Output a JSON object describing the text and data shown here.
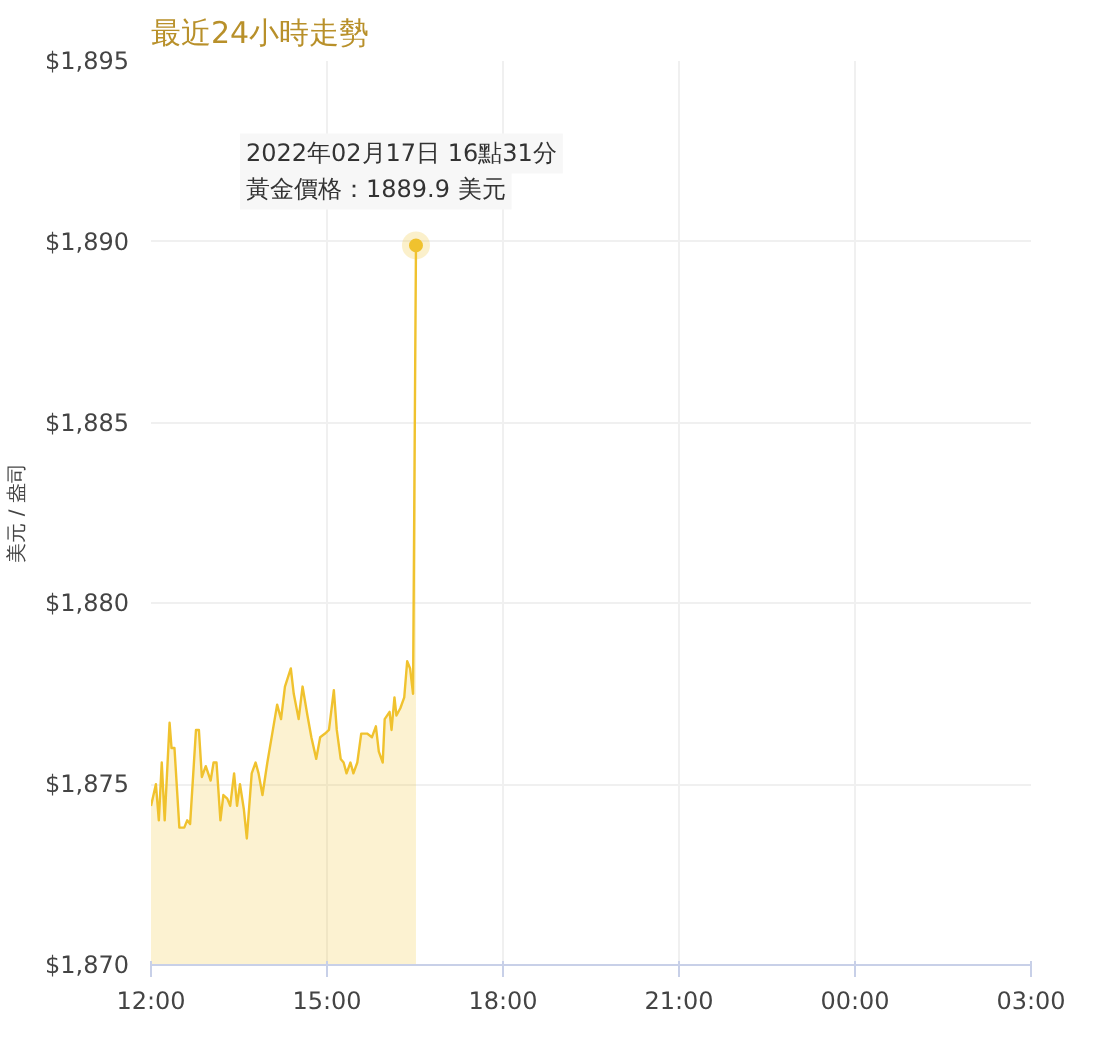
{
  "chart_data": {
    "type": "area",
    "title": "最近24小時走勢",
    "ylabel": "美元 / 盎司",
    "x": [
      "2022-02-17T12:00",
      "2022-02-17T12:05",
      "2022-02-17T12:08",
      "2022-02-17T12:11",
      "2022-02-17T12:14",
      "2022-02-17T12:19",
      "2022-02-17T12:21",
      "2022-02-17T12:24",
      "2022-02-17T12:29",
      "2022-02-17T12:34",
      "2022-02-17T12:37",
      "2022-02-17T12:40",
      "2022-02-17T12:46",
      "2022-02-17T12:49",
      "2022-02-17T12:52",
      "2022-02-17T12:56",
      "2022-02-17T13:01",
      "2022-02-17T13:04",
      "2022-02-17T13:07",
      "2022-02-17T13:11",
      "2022-02-17T13:14",
      "2022-02-17T13:18",
      "2022-02-17T13:21",
      "2022-02-17T13:25",
      "2022-02-17T13:28",
      "2022-02-17T13:31",
      "2022-02-17T13:35",
      "2022-02-17T13:38",
      "2022-02-17T13:43",
      "2022-02-17T13:47",
      "2022-02-17T13:50",
      "2022-02-17T13:54",
      "2022-02-17T13:59",
      "2022-02-17T14:04",
      "2022-02-17T14:09",
      "2022-02-17T14:13",
      "2022-02-17T14:17",
      "2022-02-17T14:23",
      "2022-02-17T14:26",
      "2022-02-17T14:31",
      "2022-02-17T14:35",
      "2022-02-17T14:40",
      "2022-02-17T14:44",
      "2022-02-17T14:49",
      "2022-02-17T14:53",
      "2022-02-17T14:58",
      "2022-02-17T15:02",
      "2022-02-17T15:07",
      "2022-02-17T15:10",
      "2022-02-17T15:14",
      "2022-02-17T15:17",
      "2022-02-17T15:20",
      "2022-02-17T15:24",
      "2022-02-17T15:27",
      "2022-02-17T15:31",
      "2022-02-17T15:35",
      "2022-02-17T15:41",
      "2022-02-17T15:46",
      "2022-02-17T15:50",
      "2022-02-17T15:53",
      "2022-02-17T15:57",
      "2022-02-17T15:59",
      "2022-02-17T16:04",
      "2022-02-17T16:06",
      "2022-02-17T16:09",
      "2022-02-17T16:11",
      "2022-02-17T16:15",
      "2022-02-17T16:19",
      "2022-02-17T16:22",
      "2022-02-17T16:25",
      "2022-02-17T16:28",
      "2022-02-17T16:31"
    ],
    "series": [
      {
        "color": "#f0c22e",
        "values": [
          1874.4,
          1875.0,
          1874.0,
          1875.6,
          1874.0,
          1876.7,
          1876.0,
          1876.0,
          1873.8,
          1873.8,
          1874.0,
          1873.9,
          1876.5,
          1876.5,
          1875.2,
          1875.5,
          1875.1,
          1875.6,
          1875.6,
          1874.0,
          1874.7,
          1874.6,
          1874.4,
          1875.3,
          1874.4,
          1875.0,
          1874.3,
          1873.5,
          1875.3,
          1875.6,
          1875.3,
          1874.7,
          1875.6,
          1876.4,
          1877.2,
          1876.8,
          1877.7,
          1878.2,
          1877.5,
          1876.8,
          1877.7,
          1876.9,
          1876.3,
          1875.7,
          1876.3,
          1876.4,
          1876.5,
          1877.6,
          1876.5,
          1875.7,
          1875.6,
          1875.3,
          1875.6,
          1875.3,
          1875.6,
          1876.4,
          1876.4,
          1876.3,
          1876.6,
          1875.9,
          1875.6,
          1876.8,
          1877.0,
          1876.5,
          1877.4,
          1876.9,
          1877.1,
          1877.4,
          1878.4,
          1878.2,
          1877.5,
          1889.9
        ]
      }
    ],
    "xlim": [
      "2022-02-17T12:00",
      "2022-02-18T03:00"
    ],
    "xticks": [
      {
        "value": "2022-02-17T12:00",
        "label": "12:00"
      },
      {
        "value": "2022-02-17T15:00",
        "label": "15:00"
      },
      {
        "value": "2022-02-17T18:00",
        "label": "18:00"
      },
      {
        "value": "2022-02-17T21:00",
        "label": "21:00"
      },
      {
        "value": "2022-02-18T00:00",
        "label": "00:00"
      },
      {
        "value": "2022-02-18T03:00",
        "label": "03:00"
      }
    ],
    "ylim": [
      1870,
      1895
    ],
    "yticks": [
      {
        "value": 1870,
        "label": "$1,870"
      },
      {
        "value": 1875,
        "label": "$1,875"
      },
      {
        "value": 1880,
        "label": "$1,880"
      },
      {
        "value": 1885,
        "label": "$1,885"
      },
      {
        "value": 1890,
        "label": "$1,890"
      },
      {
        "value": 1895,
        "label": "$1,895"
      }
    ],
    "grid": true,
    "annotations": [
      "2022年02月17日 16點31分",
      {
        "text": "黃金價格：1889.9 美元",
        "x": "2022-02-17T16:31",
        "y": 1889.9
      }
    ]
  }
}
